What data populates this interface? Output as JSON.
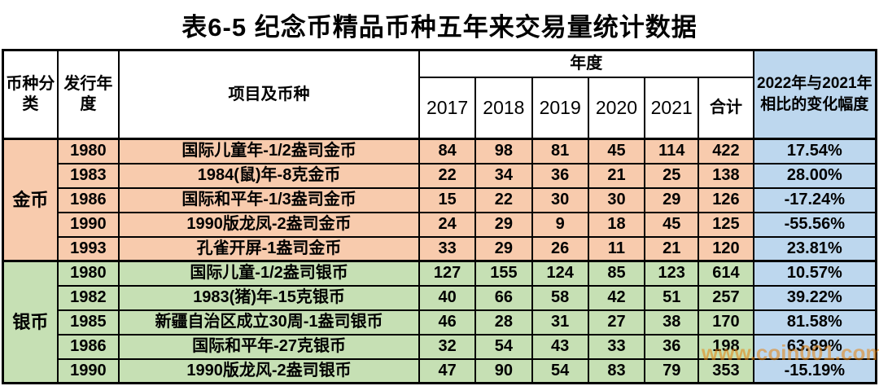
{
  "watermark": "www.coin001.com",
  "colors": {
    "gold_section_bg": "#F8CBAD",
    "silver_section_bg": "#C6E0B4",
    "change_column_bg": "#BDD7EE",
    "border": "#000000",
    "watermark": "#E8820C"
  },
  "chart_data": {
    "type": "table",
    "title": "表6-5 纪念币精品币种五年来交易量统计数据",
    "header": {
      "coin_class": "币种分类",
      "issue_year": "发行年度",
      "item": "项目及币种",
      "year_group": "年度",
      "years": [
        "2017",
        "2018",
        "2019",
        "2020",
        "2021",
        "合计"
      ],
      "change": "2022年与2021年相比的变化幅度"
    },
    "sections": [
      {
        "name": "金币",
        "rows": [
          {
            "issue_year": "1980",
            "item": "国际儿童年-1/2盎司金币",
            "values": [
              84,
              98,
              81,
              45,
              114,
              422
            ],
            "change": "17.54%"
          },
          {
            "issue_year": "1983",
            "item": "1984(鼠)年-8克金币",
            "values": [
              22,
              34,
              36,
              21,
              25,
              138
            ],
            "change": "28.00%"
          },
          {
            "issue_year": "1986",
            "item": "国际和平年-1/3盎司金币",
            "values": [
              15,
              22,
              30,
              30,
              29,
              126
            ],
            "change": "-17.24%"
          },
          {
            "issue_year": "1990",
            "item": "1990版龙凤-2盎司金币",
            "values": [
              24,
              29,
              9,
              18,
              45,
              125
            ],
            "change": "-55.56%"
          },
          {
            "issue_year": "1993",
            "item": "孔雀开屏-1盎司金币",
            "values": [
              33,
              29,
              26,
              11,
              21,
              120
            ],
            "change": "23.81%"
          }
        ]
      },
      {
        "name": "银币",
        "rows": [
          {
            "issue_year": "1980",
            "item": "国际儿童-1/2盎司银币",
            "values": [
              127,
              155,
              124,
              85,
              123,
              614
            ],
            "change": "10.57%"
          },
          {
            "issue_year": "1982",
            "item": "1983(猪)年-15克银币",
            "values": [
              40,
              66,
              58,
              42,
              51,
              257
            ],
            "change": "39.22%"
          },
          {
            "issue_year": "1985",
            "item": "新疆自治区成立30周-1盎司银币",
            "values": [
              46,
              28,
              31,
              27,
              38,
              170
            ],
            "change": "81.58%"
          },
          {
            "issue_year": "1986",
            "item": "国际和平年-27克银币",
            "values": [
              32,
              54,
              43,
              33,
              36,
              198
            ],
            "change": "63.89%"
          },
          {
            "issue_year": "1990",
            "item": "1990版龙风-2盎司银币",
            "values": [
              47,
              90,
              54,
              83,
              79,
              353
            ],
            "change": "-15.19%"
          }
        ]
      }
    ]
  }
}
